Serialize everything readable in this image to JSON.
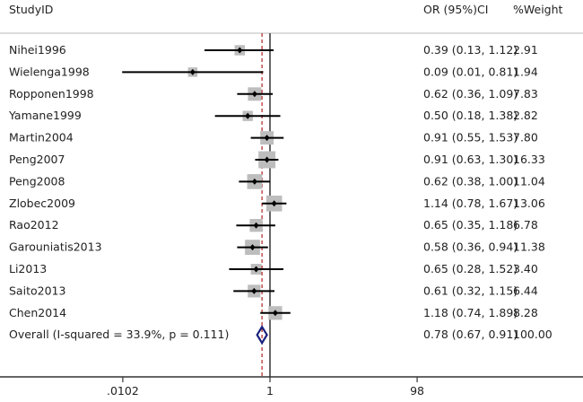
{
  "chart_data": {
    "type": "forest",
    "scale": "log",
    "headers": {
      "study": "StudyID",
      "effect": "OR (95%)CI",
      "weight": "%Weight"
    },
    "studies": [
      {
        "name": "Nihei1996",
        "or": 0.39,
        "lo": 0.13,
        "hi": 1.12,
        "weight": 2.91,
        "label": "0.39 (0.13, 1.12)",
        "weight_label": "2.91"
      },
      {
        "name": "Wielenga1998",
        "or": 0.09,
        "lo": 0.01,
        "hi": 0.81,
        "weight": 1.94,
        "label": "0.09 (0.01, 0.81)",
        "weight_label": "1.94"
      },
      {
        "name": "Ropponen1998",
        "or": 0.62,
        "lo": 0.36,
        "hi": 1.09,
        "weight": 7.83,
        "label": "0.62 (0.36, 1.09)",
        "weight_label": "7.83"
      },
      {
        "name": "Yamane1999",
        "or": 0.5,
        "lo": 0.18,
        "hi": 1.38,
        "weight": 2.82,
        "label": "0.50 (0.18, 1.38)",
        "weight_label": "2.82"
      },
      {
        "name": "Martin2004",
        "or": 0.91,
        "lo": 0.55,
        "hi": 1.53,
        "weight": 7.8,
        "label": "0.91 (0.55, 1.53)",
        "weight_label": "7.80"
      },
      {
        "name": "Peng2007",
        "or": 0.91,
        "lo": 0.63,
        "hi": 1.3,
        "weight": 16.33,
        "label": "0.91 (0.63, 1.30)",
        "weight_label": "16.33"
      },
      {
        "name": "Peng2008",
        "or": 0.62,
        "lo": 0.38,
        "hi": 1.0,
        "weight": 11.04,
        "label": "0.62 (0.38, 1.00)",
        "weight_label": "11.04"
      },
      {
        "name": "Zlobec2009",
        "or": 1.14,
        "lo": 0.78,
        "hi": 1.67,
        "weight": 13.06,
        "label": "1.14 (0.78, 1.67)",
        "weight_label": "13.06"
      },
      {
        "name": "Rao2012",
        "or": 0.65,
        "lo": 0.35,
        "hi": 1.18,
        "weight": 6.78,
        "label": "0.65 (0.35, 1.18)",
        "weight_label": "6.78"
      },
      {
        "name": "Garouniatis2013",
        "or": 0.58,
        "lo": 0.36,
        "hi": 0.94,
        "weight": 11.38,
        "label": "0.58 (0.36, 0.94)",
        "weight_label": "11.38"
      },
      {
        "name": "Li2013",
        "or": 0.65,
        "lo": 0.28,
        "hi": 1.52,
        "weight": 3.4,
        "label": "0.65 (0.28, 1.52)",
        "weight_label": "3.40"
      },
      {
        "name": "Saito2013",
        "or": 0.61,
        "lo": 0.32,
        "hi": 1.15,
        "weight": 6.44,
        "label": "0.61 (0.32, 1.15)",
        "weight_label": "6.44"
      },
      {
        "name": "Chen2014",
        "or": 1.18,
        "lo": 0.74,
        "hi": 1.89,
        "weight": 8.28,
        "label": "1.18 (0.74, 1.89)",
        "weight_label": "8.28"
      }
    ],
    "overall": {
      "name": "Overall  (I-squared = 33.9%, p = 0.111)",
      "or": 0.78,
      "lo": 0.67,
      "hi": 0.91,
      "label": "0.78 (0.67, 0.91)",
      "weight_label": "100.00"
    },
    "xticks": [
      {
        "value": 0.0102,
        "label": ".0102"
      },
      {
        "value": 1,
        "label": "1"
      },
      {
        "value": 98,
        "label": "98"
      }
    ],
    "xlim": [
      0.0102,
      98
    ],
    "colors": {
      "ci": "#000000",
      "box": "#bdbdbd",
      "diamond": "#1a237e",
      "overall_line": "#b22222",
      "null_line": "#333333"
    }
  }
}
